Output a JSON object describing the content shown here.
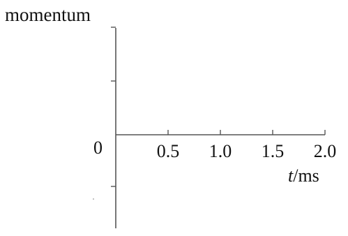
{
  "chart_data": {
    "type": "line",
    "title": "",
    "xlabel": {
      "symbol": "t",
      "unit": "/ms"
    },
    "ylabel": "momentum",
    "xlim": [
      0,
      2.0
    ],
    "x_ticks": [
      "0.5",
      "1.0",
      "1.5",
      "2.0"
    ],
    "x_tick_values": [
      0.5,
      1.0,
      1.5,
      2.0
    ],
    "origin_label": "0",
    "y_tick_count_above": 2,
    "y_tick_count_below": 1,
    "y_tick_labels": [],
    "series": [],
    "grid": false,
    "legend": "none"
  }
}
